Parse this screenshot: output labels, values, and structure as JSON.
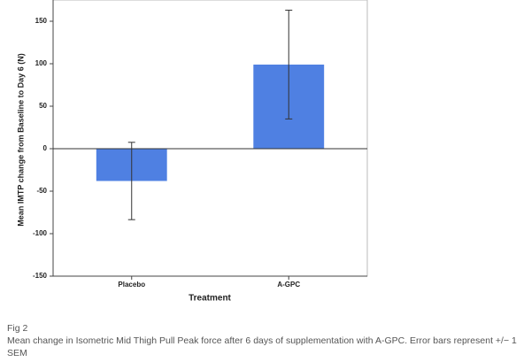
{
  "chart_data": {
    "type": "bar",
    "y_label": "Mean IMTP change from Baseline to Day 6 (N)",
    "x_label": "Treatment",
    "categories": [
      "Placebo",
      "A-GPC"
    ],
    "values": [
      -38,
      99
    ],
    "errors": [
      45.5,
      64
    ],
    "color": "#4f80e2",
    "ylim": [
      -150,
      170
    ],
    "yticks": [
      -150,
      -100,
      -50,
      0,
      50,
      100,
      150
    ]
  },
  "caption": {
    "label": "Fig 2",
    "text": "Mean change in Isometric Mid Thigh Pull Peak force after 6 days of supplementation with A-GPC. Error bars represent +/− 1 SEM"
  }
}
